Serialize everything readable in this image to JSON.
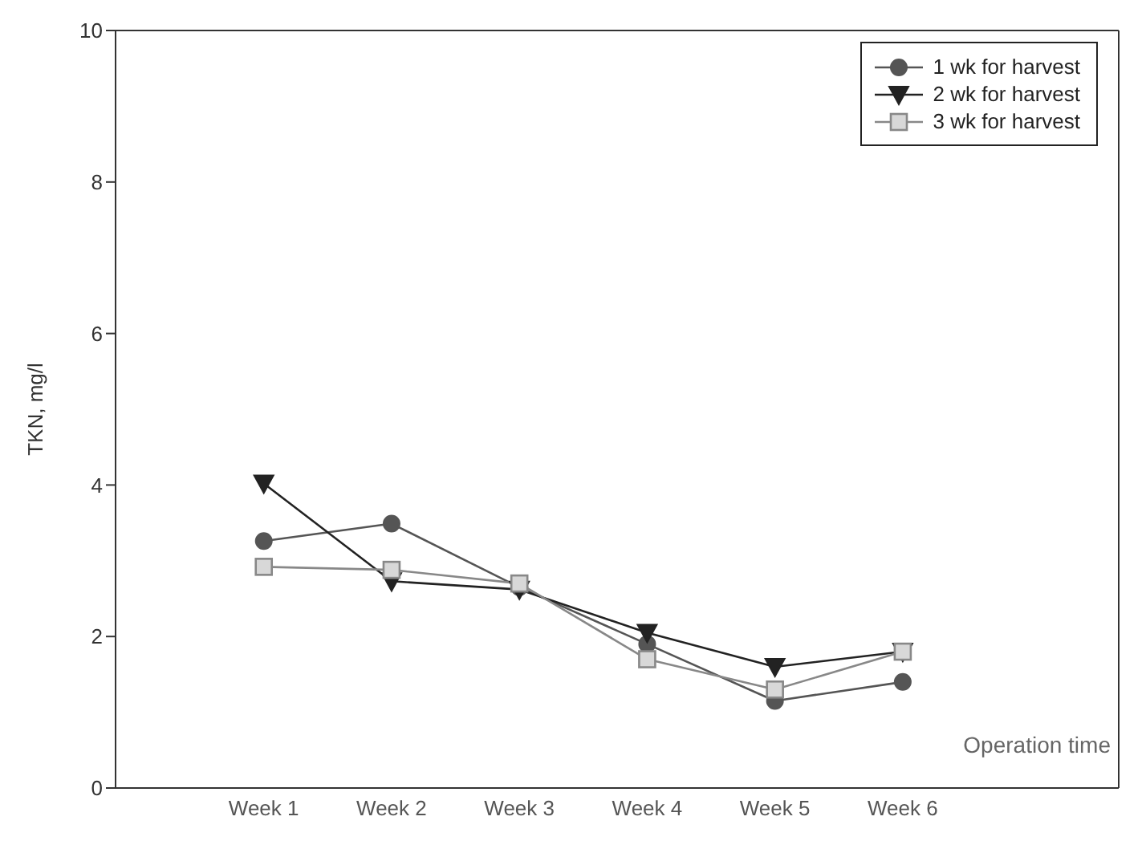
{
  "chart_data": {
    "type": "line",
    "annotations": [
      "Operation time"
    ],
    "ylabel": "TKN, mg/l",
    "categories": [
      "Week 1",
      "Week 2",
      "Week 3",
      "Week 4",
      "Week 5",
      "Week 6"
    ],
    "series": [
      {
        "name": "1 wk for harvest",
        "color": "#555555",
        "marker": "circle",
        "values": [
          3.26,
          3.49,
          2.65,
          1.9,
          1.15,
          1.4
        ]
      },
      {
        "name": "2 wk for harvest",
        "color": "#222222",
        "marker": "triangle",
        "values": [
          4.02,
          2.73,
          2.62,
          2.05,
          1.6,
          1.8
        ]
      },
      {
        "name": "3 wk for harvest",
        "color": "#888888",
        "marker": "square",
        "values": [
          2.92,
          2.88,
          2.7,
          1.7,
          1.3,
          1.8
        ]
      }
    ],
    "ylim": [
      0,
      10
    ],
    "yticks": [
      0,
      2,
      4,
      6,
      8,
      10
    ],
    "legend": "top right",
    "line_style": "solid"
  }
}
